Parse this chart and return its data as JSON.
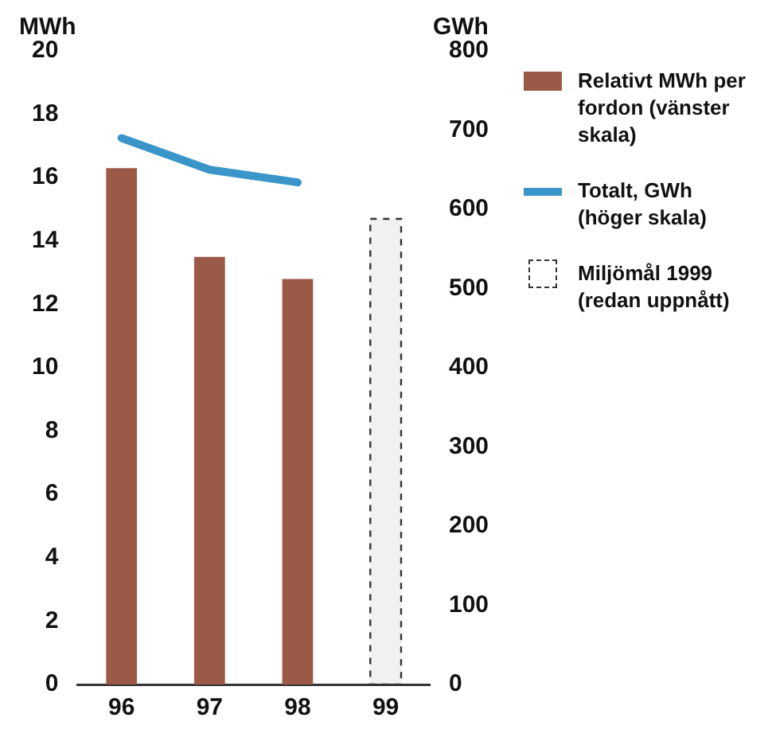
{
  "chart_data": {
    "type": "bar",
    "ylabel": "MWh",
    "y2label": "GWh",
    "categories": [
      "96",
      "97",
      "98",
      "99"
    ],
    "series": [
      {
        "name": "Relativt MWh per fordon (vänster skala)",
        "color": "#9b5a47",
        "values": [
          16.3,
          13.5,
          12.8,
          null
        ]
      },
      {
        "name": "Totalt, GWh (höger skala)",
        "type": "line",
        "axis": "y2",
        "color": "#3a96c8",
        "values": [
          690,
          650,
          634,
          null
        ]
      },
      {
        "name": "Miljömål 1999 (redan uppnått)",
        "type": "bar",
        "color": "#333333",
        "line_style": "dashed",
        "values": [
          null,
          null,
          null,
          14.7
        ]
      }
    ],
    "ylim": [
      0,
      20
    ],
    "yticks": [
      0,
      2,
      4,
      6,
      8,
      10,
      12,
      14,
      16,
      18,
      20
    ],
    "y2lim": [
      0,
      800
    ],
    "y2ticks": [
      0,
      100,
      200,
      300,
      400,
      500,
      600,
      700,
      800
    ],
    "grid": false,
    "legend": "right",
    "marker": "none"
  }
}
